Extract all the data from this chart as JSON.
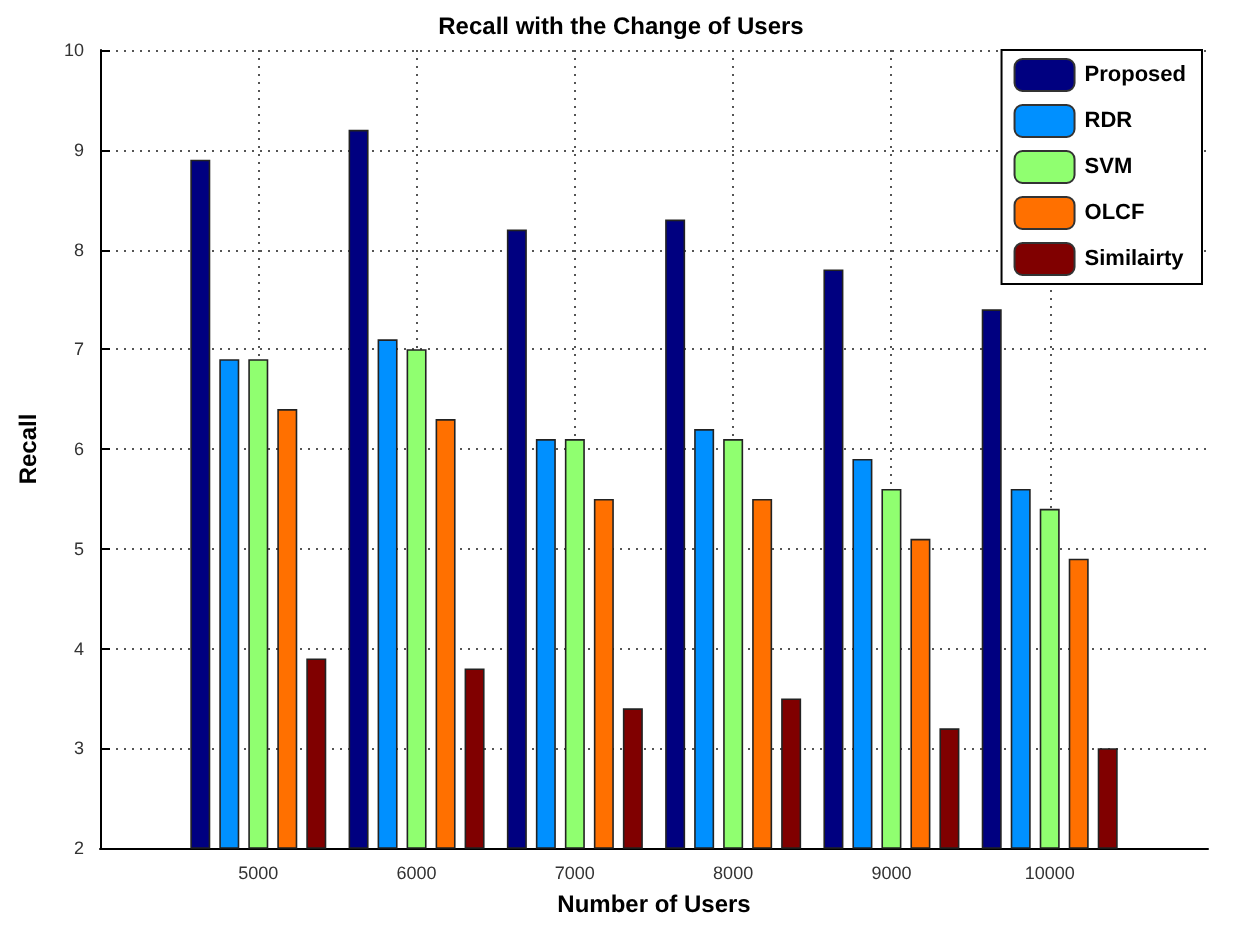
{
  "chart_data": {
    "type": "bar",
    "title": "Recall with the Change of Users",
    "xlabel": "Number of Users",
    "ylabel": "Recall",
    "x": [
      5000,
      6000,
      7000,
      8000,
      9000,
      10000
    ],
    "xlim": [
      4000,
      11000
    ],
    "xticks": [
      5000,
      6000,
      7000,
      8000,
      9000,
      10000
    ],
    "ylim": [
      2,
      10
    ],
    "yticks": [
      2,
      3,
      4,
      5,
      6,
      7,
      8,
      9,
      10
    ],
    "series": [
      {
        "name": "Proposed",
        "color": "#000080",
        "values": [
          8.9,
          9.2,
          8.2,
          8.3,
          7.8,
          7.4
        ]
      },
      {
        "name": "RDR",
        "color": "#0090ff",
        "values": [
          6.9,
          7.1,
          6.1,
          6.2,
          5.9,
          5.6
        ]
      },
      {
        "name": "SVM",
        "color": "#90ff70",
        "values": [
          6.9,
          7.0,
          6.1,
          6.1,
          5.6,
          5.4
        ]
      },
      {
        "name": "OLCF",
        "color": "#ff7000",
        "values": [
          6.4,
          6.3,
          5.5,
          5.5,
          5.1,
          4.9
        ]
      },
      {
        "name": "Similairty",
        "color": "#800000",
        "values": [
          3.9,
          3.8,
          3.4,
          3.5,
          3.2,
          3.0
        ]
      }
    ],
    "grid": true,
    "legend": "top right"
  }
}
